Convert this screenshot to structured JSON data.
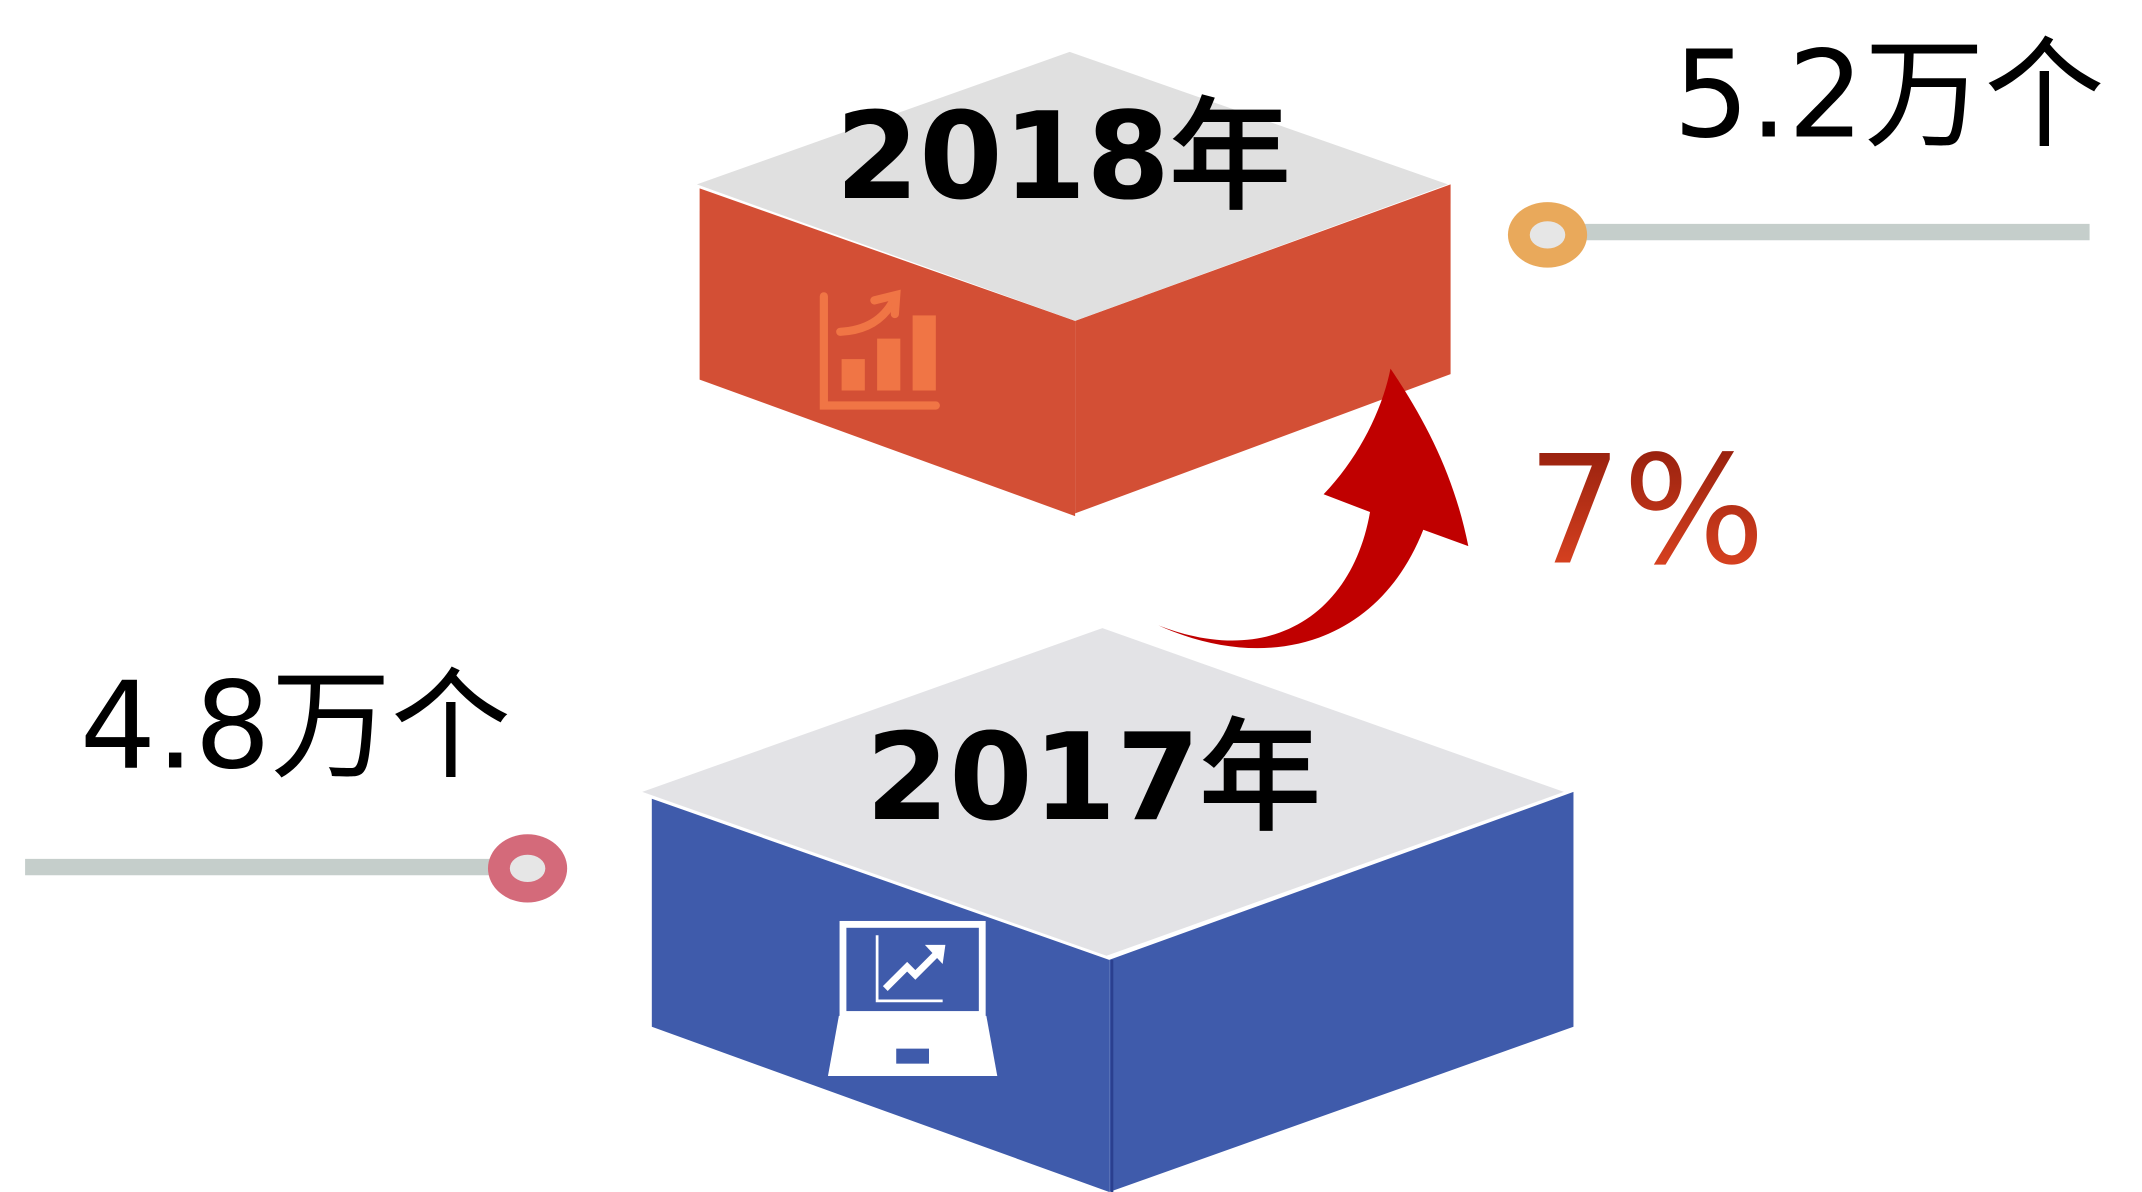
{
  "blocks": [
    {
      "year": "2018年",
      "value": "5.2万个"
    },
    {
      "year": "2017年",
      "value": "4.8万个"
    }
  ],
  "growth": "7%"
}
